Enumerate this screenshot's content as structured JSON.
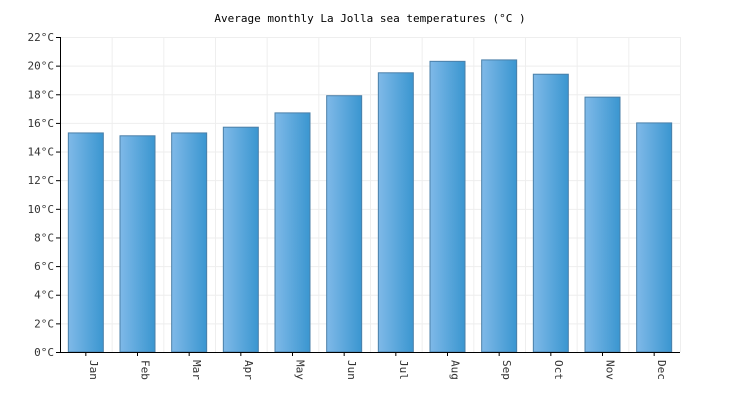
{
  "chart_data": {
    "type": "bar",
    "title": "Average monthly La Jolla sea temperatures (°C )",
    "xlabel": "",
    "ylabel": "",
    "categories": [
      "Jan",
      "Feb",
      "Mar",
      "Apr",
      "May",
      "Jun",
      "Jul",
      "Aug",
      "Sep",
      "Oct",
      "Nov",
      "Dec"
    ],
    "values": [
      15.3,
      15.1,
      15.3,
      15.7,
      16.7,
      17.9,
      19.5,
      20.3,
      20.4,
      19.4,
      17.8,
      16.0
    ],
    "ylim": [
      0,
      22
    ],
    "yticks": [
      0,
      2,
      4,
      6,
      8,
      10,
      12,
      14,
      16,
      18,
      20,
      22
    ],
    "ytick_suffix": "°C",
    "grid": true,
    "bar_color_light": "#7fb9e8",
    "bar_color_dark": "#3a96d0"
  }
}
